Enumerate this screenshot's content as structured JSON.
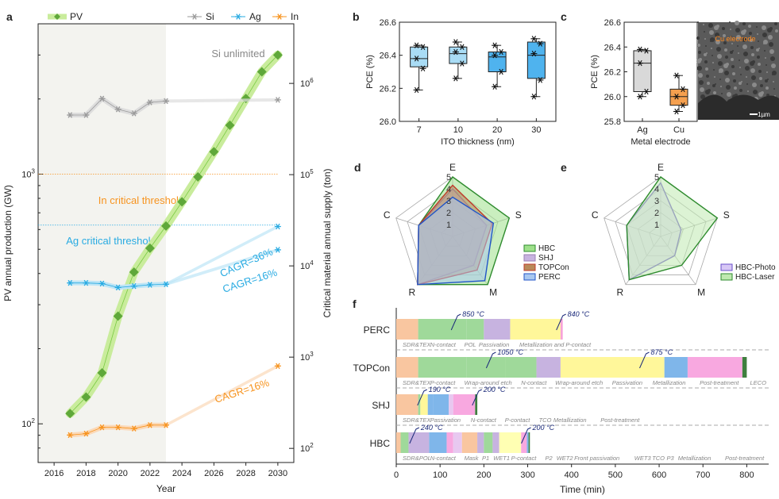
{
  "panels": {
    "a": "a",
    "b": "b",
    "c": "c",
    "d": "d",
    "e": "e",
    "f": "f"
  },
  "colors": {
    "pv": "#7ac943",
    "pv_band": "#c9ec9c",
    "si": "#9a9a9a",
    "ag": "#29abe2",
    "in": "#f7931e",
    "shade": "#f3f3ef",
    "ito": "#4fb3ee",
    "ito_light": "#a9dcf5",
    "cu": "#f5a04f",
    "ag_box": "#d9d9d9",
    "hbc": "#2e8b2e",
    "hbc_fill": "#bfe9b0",
    "shj": "#9b7fb5",
    "topcon": "#c0392b",
    "perc": "#2155c8",
    "photo": "#6a4fc9",
    "sdr": "#f9c6a0",
    "ncon": "#9fd99a",
    "pol": "#c7b3e0",
    "pass": "#fff79a",
    "metal": "#f7a3d9",
    "wrap": "#9ed39a",
    "tco": "#e8c8f0",
    "post": "#f8a8e0",
    "leco": "#3f7f3f",
    "met_b": "#7fb6ea",
    "fp": "#ffffb3"
  },
  "chart_data": [
    {
      "panel": "a",
      "type": "line",
      "xlabel": "Year",
      "ylabel": "PV annual production (GW)",
      "ylabel_right": "Critical material annual supply (ton)",
      "xlim": [
        2015,
        2031
      ],
      "xticks": [
        "2016",
        "2018",
        "2020",
        "2022",
        "2024",
        "2026",
        "2028",
        "2030"
      ],
      "ylim_left": [
        70,
        4000
      ],
      "ylim_right": [
        70,
        4500000
      ],
      "log": true,
      "yticks_left": [
        {
          "sup": "2",
          "v": 100
        },
        {
          "sup": "3",
          "v": 1000
        }
      ],
      "yticks_right": [
        {
          "sup": "2",
          "v": 100
        },
        {
          "sup": "3",
          "v": 1000
        },
        {
          "sup": "4",
          "v": 10000
        },
        {
          "sup": "5",
          "v": 100000
        },
        {
          "sup": "6",
          "v": 1000000
        }
      ],
      "historical_until": 2023,
      "legend": [
        "PV",
        "Si",
        "Ag",
        "In"
      ],
      "series": [
        {
          "name": "PV",
          "axis": "left",
          "x": [
            2017,
            2018,
            2019,
            2020,
            2021,
            2022,
            2023,
            2024,
            2025,
            2026,
            2027,
            2028,
            2029,
            2030
          ],
          "values": [
            110,
            128,
            160,
            270,
            405,
            505,
            620,
            775,
            975,
            1230,
            1570,
            2010,
            2570,
            3000
          ]
        },
        {
          "name": "Si",
          "axis": "right",
          "x": [
            2017,
            2018,
            2019,
            2020,
            2021,
            2022,
            2023,
            2030
          ],
          "values": [
            450000,
            450000,
            680000,
            520000,
            470000,
            620000,
            640000,
            660000
          ]
        },
        {
          "name": "Ag",
          "axis": "right",
          "x": [
            2017,
            2018,
            2019,
            2020,
            2021,
            2022,
            2023,
            2030
          ],
          "values": [
            6500,
            6500,
            6400,
            5800,
            6000,
            6200,
            6300,
            27000
          ],
          "projection": {
            "x": [
              2023,
              2030
            ],
            "values": [
              6300,
              15000
            ]
          }
        },
        {
          "name": "In",
          "axis": "right",
          "x": [
            2017,
            2018,
            2019,
            2020,
            2021,
            2022,
            2023,
            2030
          ],
          "values": [
            140,
            145,
            170,
            170,
            165,
            180,
            180,
            800
          ]
        }
      ],
      "annotations": {
        "si": "Si unlimited",
        "in_threshold": "In critical threshold",
        "ag_threshold": "Ag critical threshold",
        "cagr_ag_36": "CAGR=36%",
        "cagr_ag_16": "CAGR=16%",
        "cagr_in": "CAGR=16%"
      },
      "thresholds": {
        "in_gw": 1000,
        "ag_gw": 625
      }
    },
    {
      "panel": "b",
      "type": "box",
      "xlabel": "ITO thickness (nm)",
      "ylabel": "PCE (%)",
      "ylim": [
        26.0,
        26.6
      ],
      "yticks": [
        "26.0",
        "26.2",
        "26.4",
        "26.6"
      ],
      "categories": [
        "7",
        "10",
        "20",
        "30"
      ],
      "boxes": [
        {
          "q1": 26.33,
          "median": 26.38,
          "q3": 26.45,
          "min": 26.19,
          "max": 26.46
        },
        {
          "q1": 26.35,
          "median": 26.41,
          "q3": 26.45,
          "min": 26.26,
          "max": 26.48
        },
        {
          "q1": 26.3,
          "median": 26.39,
          "q3": 26.42,
          "min": 26.21,
          "max": 26.46
        },
        {
          "q1": 26.26,
          "median": 26.4,
          "q3": 26.48,
          "min": 26.15,
          "max": 26.5
        }
      ],
      "points": [
        [
          26.46,
          26.45,
          26.38,
          26.32,
          26.19
        ],
        [
          26.48,
          26.45,
          26.42,
          26.35,
          26.26
        ],
        [
          26.46,
          26.42,
          26.4,
          26.3,
          26.21
        ],
        [
          26.5,
          26.47,
          26.41,
          26.25,
          26.15
        ]
      ]
    },
    {
      "panel": "c",
      "type": "box",
      "xlabel": "Metal electrode",
      "ylabel": "PCE (%)",
      "ylim": [
        25.8,
        26.6
      ],
      "yticks": [
        "25.8",
        "26.0",
        "26.2",
        "26.4",
        "26.6"
      ],
      "categories": [
        "Ag",
        "Cu"
      ],
      "boxes": [
        {
          "q1": 26.04,
          "median": 26.27,
          "q3": 26.37,
          "min": 26.0,
          "max": 26.38
        },
        {
          "q1": 25.93,
          "median": 26.0,
          "q3": 26.06,
          "min": 25.88,
          "max": 26.17
        }
      ],
      "points": [
        [
          26.38,
          26.37,
          26.27,
          26.04,
          26.0
        ],
        [
          26.17,
          26.06,
          26.0,
          25.93,
          25.88
        ]
      ],
      "micrograph": {
        "label": "Cu electrode",
        "scale": "1µm"
      }
    },
    {
      "panel": "d",
      "type": "radar",
      "axes": [
        "E",
        "S",
        "M",
        "R",
        "C"
      ],
      "rings": [
        "1",
        "2",
        "3",
        "4",
        "5"
      ],
      "series": [
        {
          "name": "HBC",
          "values": [
            5,
            5,
            5,
            5,
            3
          ]
        },
        {
          "name": "SHJ",
          "values": [
            4,
            3,
            3,
            5,
            3
          ]
        },
        {
          "name": "TOPCon",
          "values": [
            4.3,
            3.5,
            3.5,
            5,
            3
          ]
        },
        {
          "name": "PERC",
          "values": [
            3.3,
            3.6,
            4.6,
            5,
            3
          ]
        }
      ]
    },
    {
      "panel": "e",
      "type": "radar",
      "axes": [
        "E",
        "S",
        "M",
        "R",
        "C"
      ],
      "rings": [
        "1",
        "2",
        "3",
        "4",
        "5"
      ],
      "series": [
        {
          "name": "HBC-Photo",
          "values": [
            4.5,
            1.8,
            2,
            4.5,
            3
          ]
        },
        {
          "name": "HBC-Laser",
          "values": [
            5,
            5,
            3,
            4.5,
            3
          ]
        }
      ]
    },
    {
      "panel": "f",
      "type": "bar",
      "orientation": "horizontal",
      "stacked": true,
      "xlabel": "Time (min)",
      "xlim": [
        0,
        850
      ],
      "xticks": [
        "0",
        "100",
        "200",
        "300",
        "400",
        "500",
        "600",
        "700",
        "800"
      ],
      "categories": [
        "PERC",
        "TOPCon",
        "SHJ",
        "HBC"
      ],
      "rows": [
        {
          "name": "PERC",
          "segments": [
            {
              "label": "SDR&TEX",
              "start": 0,
              "end": 50,
              "color": "sdr"
            },
            {
              "label": "N-contact",
              "start": 50,
              "end": 160,
              "color": "ncon"
            },
            {
              "label": "POL",
              "start": 160,
              "end": 200,
              "color": "ncon"
            },
            {
              "label": "Passivation",
              "start": 200,
              "end": 260,
              "color": "pol"
            },
            {
              "label": "Metallization and P-contact",
              "start": 260,
              "end": 375,
              "color": "pass"
            },
            {
              "label": "",
              "start": 375,
              "end": 380,
              "color": "metal"
            }
          ],
          "temps": [
            {
              "t": "850 °C",
              "x": 140
            },
            {
              "t": "840 °C",
              "x": 380
            }
          ]
        },
        {
          "name": "TOPCon",
          "segments": [
            {
              "label": "SDR&TEX",
              "start": 0,
              "end": 50,
              "color": "sdr"
            },
            {
              "label": "P-contact",
              "start": 50,
              "end": 160,
              "color": "ncon"
            },
            {
              "label": "Wrap-around etch",
              "start": 160,
              "end": 250,
              "color": "ncon"
            },
            {
              "label": "N-contact",
              "start": 250,
              "end": 320,
              "color": "ncon"
            },
            {
              "label": "Wrap-around etch",
              "start": 320,
              "end": 375,
              "color": "pol"
            },
            {
              "label": "Passivation",
              "start": 375,
              "end": 612,
              "color": "pass"
            },
            {
              "label": "Metallization",
              "start": 612,
              "end": 665,
              "color": "met_b"
            },
            {
              "label": "Post-treatment",
              "start": 665,
              "end": 790,
              "color": "post"
            },
            {
              "label": "LECO",
              "start": 790,
              "end": 800,
              "color": "leco"
            }
          ],
          "temps": [
            {
              "t": "1050 °C",
              "x": 220
            },
            {
              "t": "875 °C",
              "x": 570
            }
          ]
        },
        {
          "name": "SHJ",
          "segments": [
            {
              "label": "SDR&TEX",
              "start": 0,
              "end": 50,
              "color": "sdr"
            },
            {
              "label": "Passivation",
              "start": 50,
              "end": 55,
              "color": "ncon"
            },
            {
              "label": "",
              "start": 55,
              "end": 72,
              "color": "pass"
            },
            {
              "label": "N-contact",
              "start": 72,
              "end": 85,
              "color": "met_b"
            },
            {
              "label": "P-contact",
              "start": 85,
              "end": 120,
              "color": "met_b"
            },
            {
              "label": "TCO",
              "start": 120,
              "end": 130,
              "color": "tco"
            },
            {
              "label": "Metallization",
              "start": 130,
              "end": 180,
              "color": "post"
            },
            {
              "label": "Post-treatment",
              "start": 180,
              "end": 185,
              "color": "leco"
            }
          ],
          "temps": [
            {
              "t": "190 °C",
              "x": 63
            },
            {
              "t": "200 °C",
              "x": 188
            }
          ]
        },
        {
          "name": "HBC",
          "segments": [
            {
              "label": "SDR&POL",
              "start": 0,
              "end": 10,
              "color": "sdr"
            },
            {
              "label": "",
              "start": 10,
              "end": 28,
              "color": "ncon"
            },
            {
              "label": "N-contact",
              "start": 28,
              "end": 75,
              "color": "pol"
            },
            {
              "label": "Mask",
              "start": 75,
              "end": 115,
              "color": "met_b"
            },
            {
              "label": "P1",
              "start": 115,
              "end": 130,
              "color": "post"
            },
            {
              "label": "WET1",
              "start": 130,
              "end": 150,
              "color": "tco"
            },
            {
              "label": "P-contact",
              "start": 150,
              "end": 185,
              "color": "sdr"
            },
            {
              "label": "P2",
              "start": 185,
              "end": 200,
              "color": "pol"
            },
            {
              "label": "WET2",
              "start": 200,
              "end": 220,
              "color": "ncon"
            },
            {
              "label": "Front passivation",
              "start": 220,
              "end": 235,
              "color": "pol"
            },
            {
              "label": "WET3",
              "start": 235,
              "end": 285,
              "color": "fp"
            },
            {
              "label": "TCO",
              "start": 285,
              "end": 298,
              "color": "post"
            },
            {
              "label": "P3",
              "start": 298,
              "end": 302,
              "color": "met_b"
            },
            {
              "label": "Metallization",
              "start": 302,
              "end": 305,
              "color": "leco"
            }
          ],
          "temps": [
            {
              "t": "240 °C",
              "x": 45
            },
            {
              "t": "200 °C",
              "x": 300
            }
          ]
        }
      ],
      "row_labels": [
        [
          "SDR&TEX",
          "N-contact",
          "POL",
          "Passivation",
          "Metallization and P-contact"
        ],
        [
          "SDR&TEX",
          "P-contact",
          "Wrap-around etch",
          "N-contact",
          "Wrap-around etch",
          "Passivation",
          "Metallization",
          "Post-treatment",
          "LECO"
        ],
        [
          "SDR&TEX",
          "Passivation",
          "N-contact",
          "P-contact",
          "TCO",
          "Metallization",
          "Post-treatment"
        ],
        [
          "SDR&POL",
          "N-contact",
          "Mask",
          "P1",
          "WET1",
          "P-contact",
          "P2",
          "WET2",
          "Front passivation",
          "WET3",
          "TCO",
          "P3",
          "Metallization",
          "Post-treatment"
        ]
      ]
    }
  ]
}
